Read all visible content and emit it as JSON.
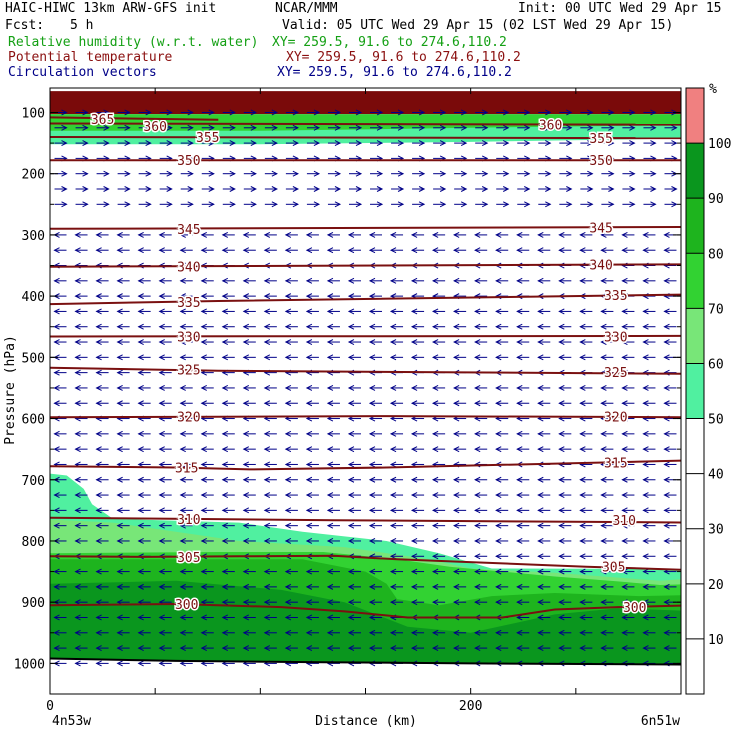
{
  "header": {
    "model": "HAIC-HIWC 13km ARW-GFS init",
    "org": "NCAR/MMM",
    "init": "Init: 00 UTC Wed 29 Apr 15",
    "fcst_label": "Fcst:",
    "fcst_value": "5 h",
    "valid": "Valid: 05 UTC Wed 29 Apr 15 (02 LST Wed 29 Apr 15)",
    "field_rh": "Relative humidity (w.r.t. water)",
    "field_theta": "Potential temperature",
    "field_vectors": "Circulation vectors",
    "xy_rh": "XY= 259.5, 91.6 to 274.6,110.2",
    "xy_theta": "XY= 259.5, 91.6 to 274.6,110.2",
    "xy_vectors": "XY= 259.5, 91.6 to 274.6,110.2"
  },
  "colors": {
    "rh_50": "#50f0a0",
    "rh_60": "#78e678",
    "rh_70": "#32d232",
    "rh_80": "#1eb41e",
    "rh_90": "#0a961e",
    "rh_100": "#f08080",
    "rh_top": "#7a0a0a",
    "theta_line": "#7a1010",
    "vector": "#000088"
  },
  "chart_data": {
    "type": "cross-section",
    "xlabel": "Distance (km)",
    "ylabel": "Pressure (hPa)",
    "xlim": [
      0,
      300
    ],
    "ylim": [
      1050,
      60
    ],
    "x_ticks": [
      0,
      200
    ],
    "y_ticks": [
      100,
      200,
      300,
      400,
      500,
      600,
      700,
      800,
      900,
      1000
    ],
    "left_end_label": "4n53w",
    "right_end_label": "6n51w",
    "colorbar": {
      "unit": "%",
      "levels": [
        10,
        20,
        30,
        40,
        50,
        60,
        70,
        80,
        90,
        100
      ],
      "filled_bands": [
        {
          "from": 50,
          "to": 60,
          "color": "#50f0a0"
        },
        {
          "from": 60,
          "to": 70,
          "color": "#78e678"
        },
        {
          "from": 70,
          "to": 80,
          "color": "#32d232"
        },
        {
          "from": 80,
          "to": 90,
          "color": "#1eb41e"
        },
        {
          "from": 90,
          "to": 100,
          "color": "#0a961e"
        },
        {
          "from": 100,
          "to": 110,
          "color": "#f08080"
        }
      ]
    },
    "theta_contours": [
      {
        "level": 300,
        "points": [
          [
            0,
            905
          ],
          [
            60,
            903
          ],
          [
            110,
            908
          ],
          [
            140,
            915
          ],
          [
            170,
            925
          ],
          [
            215,
            925
          ],
          [
            240,
            912
          ],
          [
            270,
            908
          ],
          [
            310,
            905
          ]
        ],
        "labels": [
          [
            65,
            903
          ],
          [
            278,
            908
          ]
        ]
      },
      {
        "level": 305,
        "points": [
          [
            0,
            825
          ],
          [
            45,
            826
          ],
          [
            90,
            825
          ],
          [
            135,
            824
          ],
          [
            165,
            830
          ],
          [
            195,
            834
          ],
          [
            225,
            838
          ],
          [
            255,
            842
          ],
          [
            310,
            848
          ]
        ],
        "labels": [
          [
            66,
            826
          ],
          [
            268,
            842
          ]
        ]
      },
      {
        "level": 310,
        "points": [
          [
            0,
            762
          ],
          [
            65,
            764
          ],
          [
            135,
            766
          ],
          [
            310,
            770
          ]
        ],
        "labels": [
          [
            66,
            764
          ],
          [
            273,
            766
          ]
        ]
      },
      {
        "level": 315,
        "points": [
          [
            0,
            678
          ],
          [
            60,
            680
          ],
          [
            95,
            683
          ],
          [
            160,
            680
          ],
          [
            310,
            668
          ]
        ],
        "labels": [
          [
            65,
            680
          ],
          [
            269,
            672
          ]
        ]
      },
      {
        "level": 320,
        "points": [
          [
            0,
            598
          ],
          [
            80,
            597
          ],
          [
            160,
            596
          ],
          [
            310,
            598
          ]
        ],
        "labels": [
          [
            66,
            597
          ],
          [
            269,
            597
          ]
        ]
      },
      {
        "level": 325,
        "points": [
          [
            0,
            517
          ],
          [
            80,
            522
          ],
          [
            310,
            527
          ]
        ],
        "labels": [
          [
            66,
            520
          ],
          [
            269,
            524
          ]
        ]
      },
      {
        "level": 330,
        "points": [
          [
            0,
            466
          ],
          [
            310,
            465
          ]
        ],
        "labels": [
          [
            66,
            466
          ],
          [
            269,
            466
          ]
        ]
      },
      {
        "level": 335,
        "points": [
          [
            0,
            413
          ],
          [
            80,
            408
          ],
          [
            310,
            397
          ]
        ],
        "labels": [
          [
            66,
            410
          ],
          [
            269,
            398
          ]
        ]
      },
      {
        "level": 340,
        "points": [
          [
            0,
            352
          ],
          [
            310,
            348
          ]
        ],
        "labels": [
          [
            66,
            352
          ],
          [
            262,
            348
          ]
        ]
      },
      {
        "level": 345,
        "points": [
          [
            0,
            290
          ],
          [
            310,
            287
          ]
        ],
        "labels": [
          [
            66,
            290
          ],
          [
            262,
            288
          ]
        ]
      },
      {
        "level": 350,
        "points": [
          [
            0,
            178
          ],
          [
            310,
            178
          ]
        ],
        "labels": [
          [
            66,
            178
          ],
          [
            262,
            178
          ]
        ]
      },
      {
        "level": 355,
        "points": [
          [
            0,
            140
          ],
          [
            310,
            142
          ]
        ],
        "labels": [
          [
            75,
            140
          ],
          [
            262,
            142
          ]
        ]
      },
      {
        "level": 360,
        "points": [
          [
            0,
            118
          ],
          [
            310,
            120
          ]
        ],
        "labels": [
          [
            50,
            122
          ],
          [
            238,
            120
          ]
        ]
      },
      {
        "level": 365,
        "points": [
          [
            0,
            108
          ],
          [
            80,
            112
          ]
        ],
        "labels": [
          [
            25,
            111
          ]
        ]
      }
    ],
    "rh_regions": [
      {
        "band": "rh_top",
        "top": [
          [
            0,
            65
          ],
          [
            310,
            65
          ]
        ],
        "bottom": [
          [
            0,
            103
          ],
          [
            310,
            103
          ]
        ]
      },
      {
        "band": "rh_50",
        "top": [
          [
            0,
            103
          ],
          [
            310,
            103
          ]
        ],
        "bottom": [
          [
            0,
            152
          ],
          [
            100,
            152
          ],
          [
            200,
            148
          ],
          [
            310,
            142
          ]
        ]
      },
      {
        "band": "rh_70",
        "top": [
          [
            0,
            103
          ],
          [
            310,
            103
          ]
        ],
        "bottom": [
          [
            0,
            130
          ],
          [
            100,
            130
          ],
          [
            200,
            125
          ],
          [
            310,
            120
          ]
        ]
      },
      {
        "band": "rh_50",
        "top": [
          [
            0,
            690
          ],
          [
            8,
            693
          ],
          [
            16,
            715
          ],
          [
            20,
            740
          ],
          [
            30,
            764
          ],
          [
            90,
            770
          ],
          [
            120,
            785
          ],
          [
            160,
            800
          ],
          [
            185,
            820
          ],
          [
            210,
            845
          ],
          [
            310,
            846
          ]
        ],
        "bottom": [
          [
            0,
            1000
          ],
          [
            310,
            1000
          ]
        ]
      },
      {
        "band": "rh_60",
        "top": [
          [
            0,
            765
          ],
          [
            30,
            770
          ],
          [
            90,
            800
          ],
          [
            140,
            810
          ],
          [
            180,
            830
          ],
          [
            200,
            845
          ],
          [
            240,
            852
          ],
          [
            290,
            865
          ],
          [
            310,
            860
          ]
        ],
        "bottom": [
          [
            0,
            1000
          ],
          [
            310,
            1000
          ]
        ]
      },
      {
        "band": "rh_70",
        "top": [
          [
            0,
            820
          ],
          [
            80,
            818
          ],
          [
            130,
            818
          ],
          [
            165,
            830
          ],
          [
            190,
            842
          ],
          [
            240,
            858
          ],
          [
            270,
            866
          ],
          [
            290,
            872
          ],
          [
            310,
            870
          ]
        ],
        "bottom": [
          [
            0,
            1000
          ],
          [
            310,
            1000
          ]
        ]
      },
      {
        "band": "rh_80",
        "top": [
          [
            0,
            830
          ],
          [
            120,
            830
          ],
          [
            150,
            850
          ],
          [
            160,
            870
          ],
          [
            165,
            895
          ],
          [
            185,
            905
          ],
          [
            210,
            890
          ],
          [
            240,
            885
          ],
          [
            280,
            890
          ],
          [
            310,
            888
          ]
        ],
        "bottom": [
          [
            0,
            1000
          ],
          [
            310,
            1000
          ]
        ]
      },
      {
        "band": "rh_90",
        "top": [
          [
            0,
            870
          ],
          [
            60,
            865
          ],
          [
            110,
            880
          ],
          [
            140,
            900
          ],
          [
            170,
            940
          ],
          [
            200,
            950
          ],
          [
            240,
            920
          ],
          [
            270,
            910
          ],
          [
            310,
            915
          ]
        ],
        "bottom": [
          [
            0,
            1000
          ],
          [
            310,
            1000
          ]
        ]
      }
    ],
    "surface_pressure": [
      [
        0,
        992
      ],
      [
        60,
        996
      ],
      [
        130,
        998
      ],
      [
        200,
        1000
      ],
      [
        310,
        1002
      ]
    ],
    "vectors": {
      "upper_levels": [
        100,
        125,
        150,
        175,
        200,
        225,
        250
      ],
      "upper_direction": "east",
      "lower_levels": [
        300,
        325,
        350,
        375,
        400,
        425,
        450,
        475,
        500,
        525,
        550,
        575,
        600,
        625,
        650,
        675,
        700,
        725,
        750,
        775,
        800,
        825,
        850,
        875,
        900,
        925,
        950,
        975,
        1000
      ],
      "lower_direction": "west",
      "x_spacing_km": 10
    }
  }
}
